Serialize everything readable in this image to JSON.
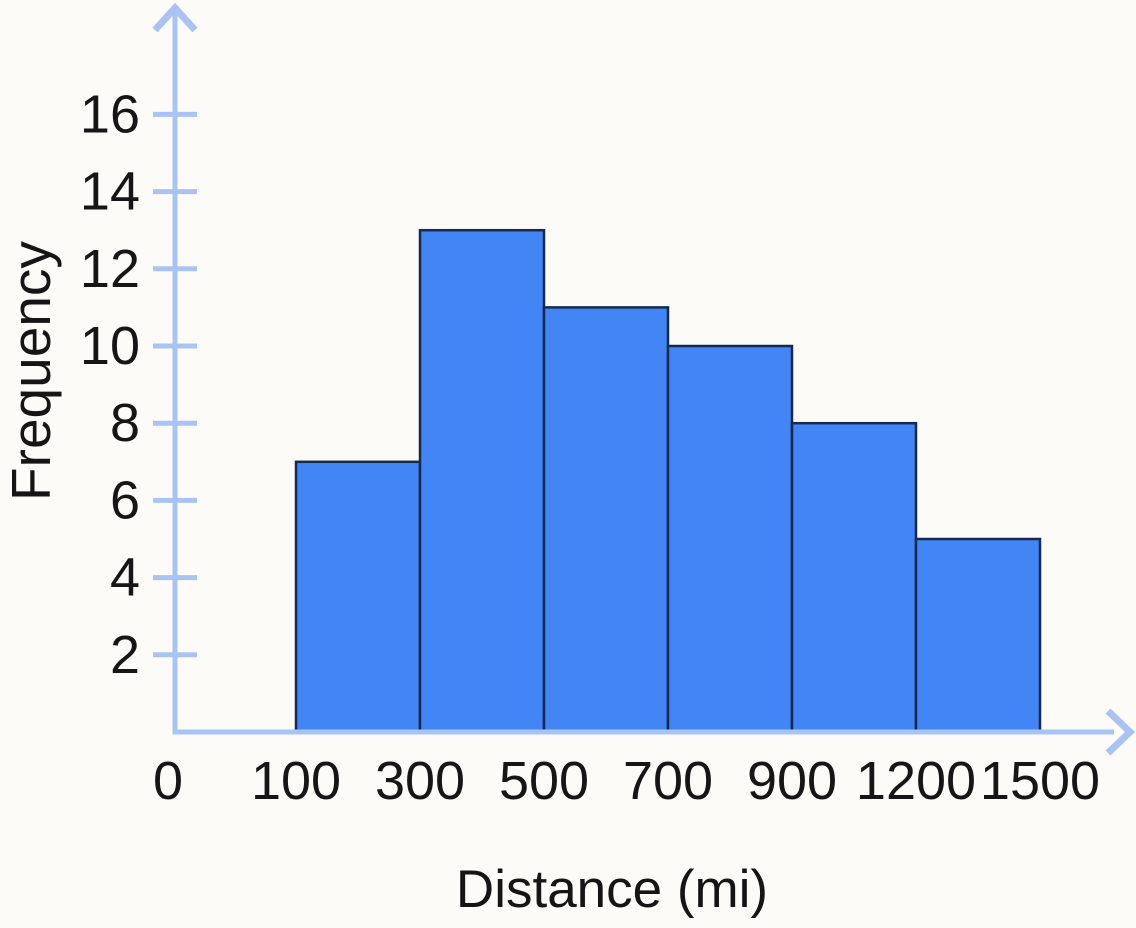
{
  "chart_data": {
    "type": "bar",
    "subtype": "histogram",
    "title": "",
    "xlabel": "Distance (mi)",
    "ylabel": "Frequency",
    "bin_edges": [
      100,
      300,
      500,
      700,
      900,
      1200,
      1500
    ],
    "bin_labels": [
      "100-300",
      "300-500",
      "500-700",
      "700-900",
      "900-1200",
      "1200-1500"
    ],
    "values": [
      7,
      13,
      11,
      10,
      8,
      5
    ],
    "x_tick_labels": [
      "0",
      "100",
      "300",
      "500",
      "700",
      "900",
      "1200",
      "1500"
    ],
    "y_tick_values": [
      2,
      4,
      6,
      8,
      10,
      12,
      14,
      16
    ],
    "ylim": [
      0,
      17.5
    ],
    "grid": false,
    "legend": false,
    "bar_fill": "#4285f4",
    "bar_border": "#17294e",
    "axis_color": "#a9c4f4",
    "text_color": "#161616",
    "background": "#fcfbf8"
  }
}
